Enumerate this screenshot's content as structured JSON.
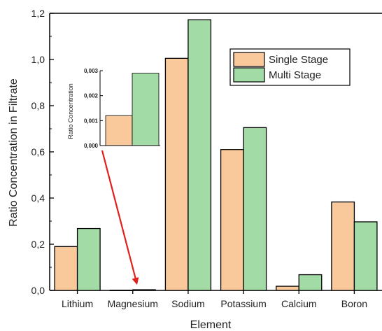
{
  "chart_data": {
    "type": "bar",
    "xlabel": "Element",
    "ylabel": "Ratio Concentration in Filtrate",
    "categories": [
      "Lithium",
      "Magnesium",
      "Sodium",
      "Potassium",
      "Calcium",
      "Boron"
    ],
    "ylim": [
      0,
      1.2
    ],
    "yticks": [
      "0,0",
      "0,2",
      "0,4",
      "0,6",
      "0,8",
      "1,0",
      "1,2"
    ],
    "grid": false,
    "legend_position": "top-right",
    "series": [
      {
        "name": "Single Stage",
        "color": "#f9c99b",
        "values": [
          0.19,
          0.0012,
          1.005,
          0.61,
          0.018,
          0.383
        ]
      },
      {
        "name": "Multi Stage",
        "color": "#a3dba6",
        "values": [
          0.268,
          0.0029,
          1.172,
          0.705,
          0.068,
          0.297
        ]
      }
    ],
    "inset": {
      "category": "Magnesium",
      "ylabel": "Ratio Concentration",
      "ylim": [
        0,
        0.003
      ],
      "yticks": [
        "0,000",
        "0,001",
        "0,002",
        "0,003"
      ],
      "values": [
        0.0012,
        0.0029
      ]
    },
    "annotation": {
      "type": "arrow",
      "color": "#e0211b",
      "from": "inset",
      "to": "Magnesium"
    }
  }
}
